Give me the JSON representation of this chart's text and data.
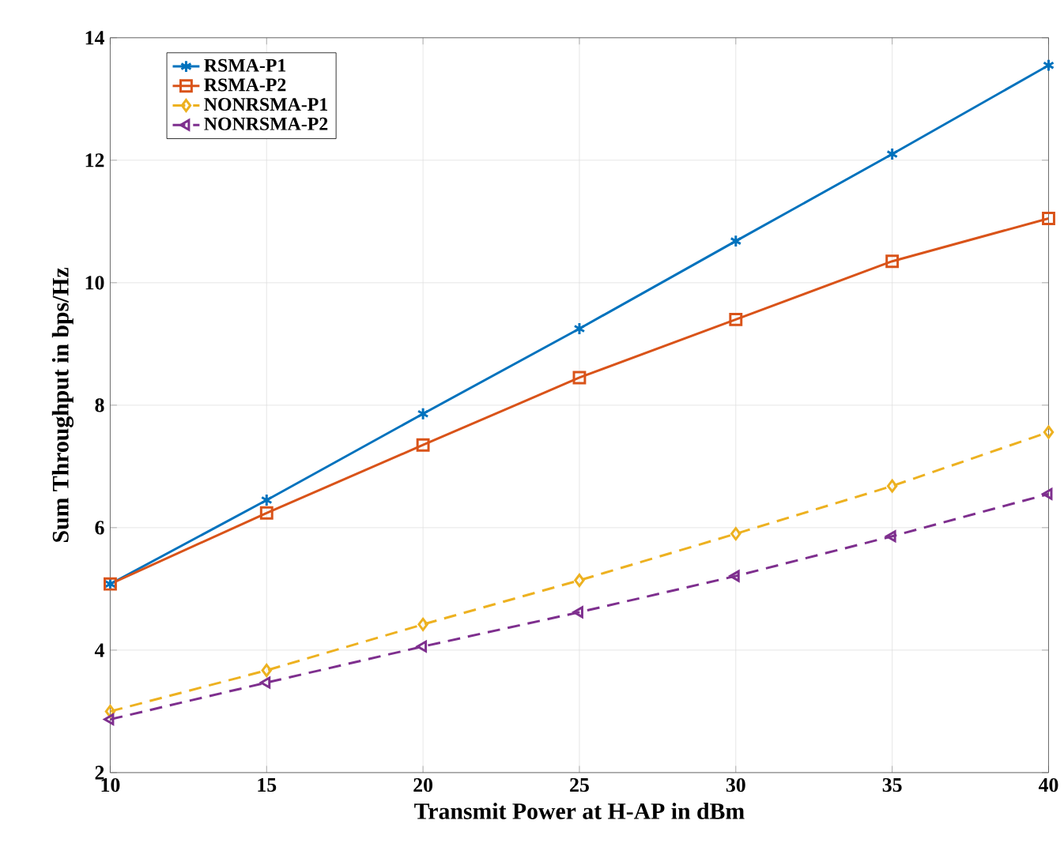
{
  "chart_data": {
    "type": "line",
    "xlabel": "Transmit Power at H-AP in dBm",
    "ylabel": "Sum Throughput in bps/Hz",
    "x": [
      10,
      15,
      20,
      25,
      30,
      35,
      40
    ],
    "series": [
      {
        "name": "RSMA-P1",
        "color": "#0072bd",
        "marker": "cross",
        "line_style": "solid",
        "values": [
          5.08,
          6.45,
          7.86,
          9.25,
          10.68,
          12.1,
          13.55
        ]
      },
      {
        "name": "RSMA-P2",
        "color": "#d95319",
        "marker": "square",
        "line_style": "solid",
        "values": [
          5.08,
          6.24,
          7.35,
          8.45,
          9.4,
          10.35,
          11.05
        ]
      },
      {
        "name": "NONRSMA-P1",
        "color": "#edb120",
        "marker": "diamond",
        "line_style": "dashed",
        "values": [
          3.0,
          3.67,
          4.42,
          5.14,
          5.9,
          6.68,
          7.56
        ]
      },
      {
        "name": "NONRSMA-P2",
        "color": "#7e2f8e",
        "marker": "triangle",
        "line_style": "dashed",
        "values": [
          2.87,
          3.47,
          4.06,
          4.62,
          5.21,
          5.86,
          6.55
        ]
      }
    ],
    "xlim": [
      10,
      40
    ],
    "ylim": [
      2,
      14
    ],
    "xticks": [
      10,
      15,
      20,
      25,
      30,
      35,
      40
    ],
    "yticks": [
      2,
      4,
      6,
      8,
      10,
      12,
      14
    ],
    "grid": true,
    "legend": "top left"
  }
}
